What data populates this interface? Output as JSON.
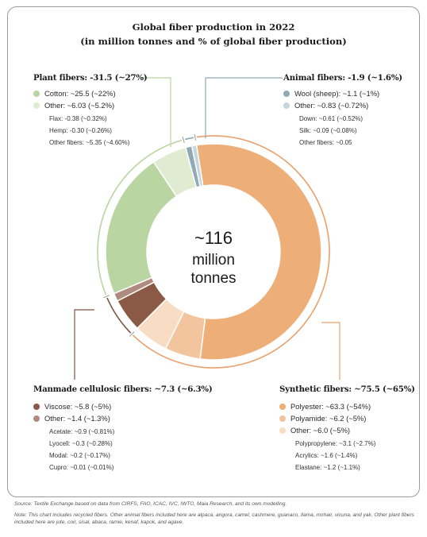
{
  "title_line1": "Global fiber production in 2022",
  "title_line2": "(in million tonnes and % of global fiber production)",
  "center": {
    "line1": "~116",
    "line2": "million",
    "line3": "tonnes"
  },
  "groups": {
    "plant": {
      "header": "Plant fibers: -31.5 (~27%)",
      "items": [
        {
          "label": "Cotton: ~25.5 (~22%)",
          "color": "#b9d5a2"
        },
        {
          "label": "Other: ~6.03 (~5.2%)",
          "color": "#dfecd2"
        }
      ],
      "subs": [
        "Flax: -0.38 (~0.32%)",
        "Hemp: -0.30 (~0.26%)",
        "Other fibers: ~5.35 (~4.60%)"
      ]
    },
    "animal": {
      "header": "Animal fibers: -1.9 (~1.6%)",
      "items": [
        {
          "label": "Wool (sheep): ~1.1 (~1%)",
          "color": "#8fa9b5"
        },
        {
          "label": "Other: ~0.83 (~0.72%)",
          "color": "#c6d6de"
        }
      ],
      "subs": [
        "Down: ~0.61 (~0.52%)",
        "Silk: ~0.09 (~0.08%)",
        "Other fibers: ~0.05"
      ]
    },
    "manmade": {
      "header": "Manmade cellulosic fibers: ~7.3 (~6.3%)",
      "items": [
        {
          "label": "Viscose: ~5.8 (~5%)",
          "color": "#8b5a47"
        },
        {
          "label": "Other: ~1.4 (~1.3%)",
          "color": "#b08a7e"
        }
      ],
      "subs": [
        "Acetate: ~0.9 (~0.81%)",
        "Lyocell: ~0.3 (~0.28%)",
        "Modal: ~0.2 (~0.17%)",
        "Cupro: ~0.01 (~0.01%)"
      ]
    },
    "synthetic": {
      "header": "Synthetic fibers: ~75.5 (~65%)",
      "items": [
        {
          "label": "Polyester: ~63.3 (~54%)",
          "color": "#eeae78"
        },
        {
          "label": "Polyamide: ~6.2 (~5%)",
          "color": "#f2c59e"
        },
        {
          "label": "Other: ~6.0 (~5%)",
          "color": "#f8dcc4"
        }
      ],
      "subs": [
        "Polypropylene: ~3.1 (~2.7%)",
        "Acrylics: ~1.6 (~1.4%)",
        "Elastane: ~1.2 (~1.1%)"
      ]
    }
  },
  "footer_source": "Source: Textile Exchange based on data from CIRFS, FAO, ICAC, IVC, IWTO, Maia Research, and its own modelling.",
  "footer_note": "Note: This chart includes recycled fibers. Other animal fibers included here are alpaca, angora, camel, cashmere, guanaco, llama, mohair, vicuna, and yak. Other plant fibers included here are jute, coir, sisal, abaca, ramie, kenaf, kapok, and agave.",
  "chart_data": {
    "type": "pie",
    "total": 116,
    "unit": "million tonnes",
    "slices": [
      {
        "name": "Wool (sheep)",
        "value": 1.1,
        "color": "#8fa9b5"
      },
      {
        "name": "Other animal",
        "value": 0.83,
        "color": "#c6d6de"
      },
      {
        "name": "Polyester",
        "value": 63.3,
        "color": "#eeae78"
      },
      {
        "name": "Polyamide",
        "value": 6.2,
        "color": "#f2c59e"
      },
      {
        "name": "Other synthetic",
        "value": 6.0,
        "color": "#f8dcc4"
      },
      {
        "name": "Viscose",
        "value": 5.8,
        "color": "#8b5a47"
      },
      {
        "name": "Other manmade cellulosic",
        "value": 1.4,
        "color": "#b08a7e"
      },
      {
        "name": "Cotton",
        "value": 25.5,
        "color": "#b9d5a2"
      },
      {
        "name": "Other plant",
        "value": 6.03,
        "color": "#dfecd2"
      }
    ],
    "groups": [
      {
        "name": "Animal fibers",
        "value": 1.9,
        "color": "#8fa9b5"
      },
      {
        "name": "Synthetic fibers",
        "value": 75.5,
        "color": "#e9a06a"
      },
      {
        "name": "Manmade cellulosic fibers",
        "value": 7.3,
        "color": "#7c5546"
      },
      {
        "name": "Plant fibers",
        "value": 31.5,
        "color": "#b9d5a2"
      }
    ]
  }
}
